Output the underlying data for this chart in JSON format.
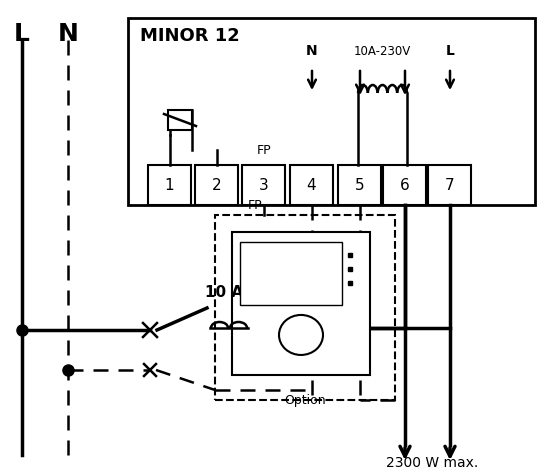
{
  "title": "MINOR 12",
  "bg_color": "#ffffff",
  "fg_color": "#000000",
  "terminal_labels": [
    "1",
    "2",
    "3",
    "4",
    "5",
    "6",
    "7"
  ],
  "label_L": "L",
  "label_N": "N",
  "label_FP_top": "FP",
  "label_FP_box": "FP",
  "label_10A": "10 A",
  "label_N_arrow": "N",
  "label_10A230V": "10A-230V",
  "label_L_arrow": "L",
  "label_option": "Option",
  "label_2300W": "2300 W max."
}
